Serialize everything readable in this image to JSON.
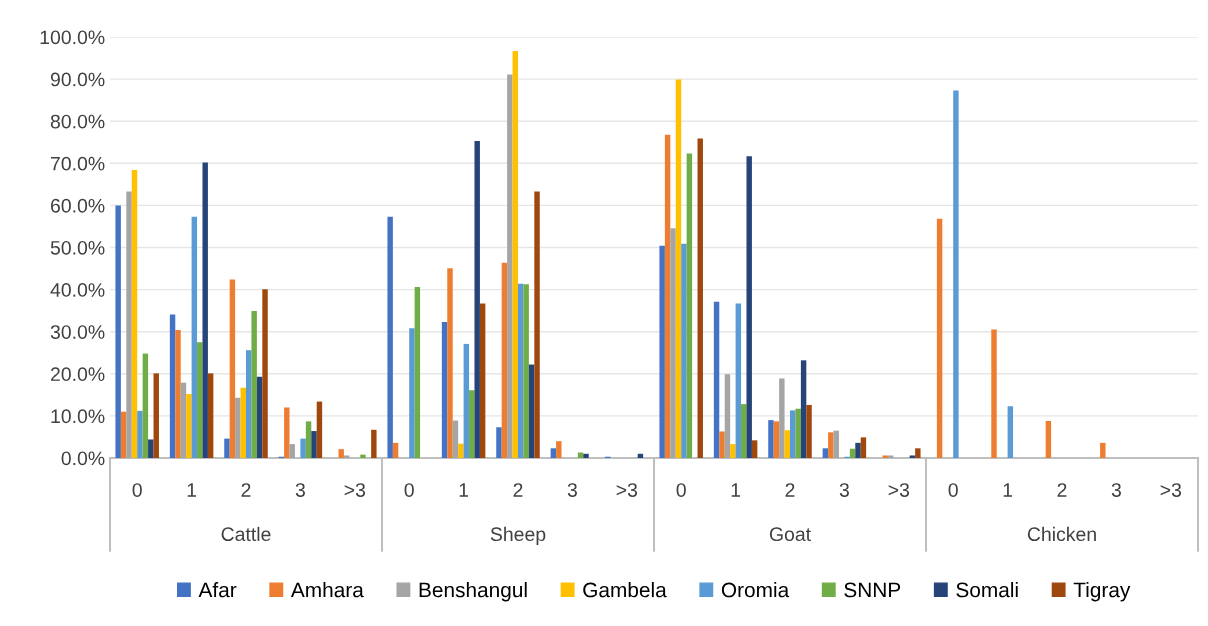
{
  "chart_data": {
    "type": "bar",
    "categories": [
      "0",
      "1",
      "2",
      "3",
      ">3",
      "0",
      "1",
      "2",
      "3",
      ">3",
      "0",
      "1",
      "2",
      "3",
      ">3",
      "0",
      "1",
      "2",
      "3",
      ">3"
    ],
    "annotations": [
      "Cattle",
      "Sheep",
      "Goat",
      "Chicken"
    ],
    "series": [
      {
        "name": "Afar",
        "color": "#4472c4",
        "values": [
          60,
          34.1,
          4.6,
          0.3,
          null,
          57.3,
          32.3,
          7.3,
          2.3,
          0.3,
          50.4,
          37.1,
          9,
          2.3,
          0,
          0,
          0,
          0,
          0,
          0
        ]
      },
      {
        "name": "Amhara",
        "color": "#ed7d31",
        "values": [
          11,
          30.4,
          42.4,
          12,
          2.1,
          3.6,
          45.1,
          46.4,
          4,
          0,
          76.8,
          6.3,
          8.7,
          6.1,
          0.6,
          56.8,
          30.5,
          8.8,
          3.6,
          0
        ]
      },
      {
        "name": "Benshangul",
        "color": "#a5a5a5",
        "values": [
          63.3,
          17.9,
          14.3,
          3.3,
          0.6,
          0,
          8.9,
          91.1,
          0,
          0,
          54.6,
          19.9,
          18.9,
          6.5,
          0.6,
          0,
          0,
          0,
          0,
          0
        ]
      },
      {
        "name": "Gambela",
        "color": "#ffc000",
        "values": [
          68.4,
          15.2,
          16.7,
          0,
          0,
          0,
          3.4,
          96.7,
          0,
          0,
          89.9,
          3.3,
          6.6,
          0,
          0,
          0,
          0,
          0,
          0,
          0
        ]
      },
      {
        "name": "Oromia",
        "color": "#5b9bd5",
        "values": [
          11.2,
          57.3,
          25.6,
          4.6,
          0,
          30.8,
          27.1,
          41.4,
          0,
          0,
          50.9,
          36.7,
          11.3,
          0.3,
          0,
          87.3,
          12.3,
          0,
          0,
          0
        ]
      },
      {
        "name": "SNNP",
        "color": "#70ad47",
        "values": [
          24.8,
          27.5,
          34.9,
          8.7,
          0.8,
          40.6,
          16.1,
          41.3,
          1.3,
          0,
          72.3,
          12.8,
          11.7,
          2.2,
          0,
          0,
          0,
          0,
          0,
          0
        ]
      },
      {
        "name": "Somali",
        "color": "#264478",
        "values": [
          4.4,
          70.2,
          19.3,
          6.4,
          0,
          0,
          75.3,
          22.2,
          1,
          1,
          0,
          71.7,
          23.2,
          3.6,
          0.6,
          0,
          0,
          0,
          0,
          0
        ]
      },
      {
        "name": "Tigray",
        "color": "#9e480e",
        "values": [
          20.1,
          20.1,
          40.1,
          13.4,
          6.7,
          0,
          36.7,
          63.3,
          0,
          0,
          75.9,
          4.2,
          12.6,
          4.9,
          2.3,
          0,
          0,
          0,
          0,
          0
        ]
      }
    ],
    "ylim": [
      0,
      100
    ],
    "yticks": [
      {
        "value": 0,
        "label": "0.0%"
      },
      {
        "value": 10,
        "label": "10.0%"
      },
      {
        "value": 20,
        "label": "20.0%"
      },
      {
        "value": 30,
        "label": "30.0%"
      },
      {
        "value": 40,
        "label": "40.0%"
      },
      {
        "value": 50,
        "label": "50.0%"
      },
      {
        "value": 60,
        "label": "60.0%"
      },
      {
        "value": 70,
        "label": "70.0%"
      },
      {
        "value": 80,
        "label": "80.0%"
      },
      {
        "value": 90,
        "label": "90.0%"
      },
      {
        "value": 100,
        "label": "100.0%"
      }
    ],
    "grid": "y",
    "legend": "bottom"
  }
}
